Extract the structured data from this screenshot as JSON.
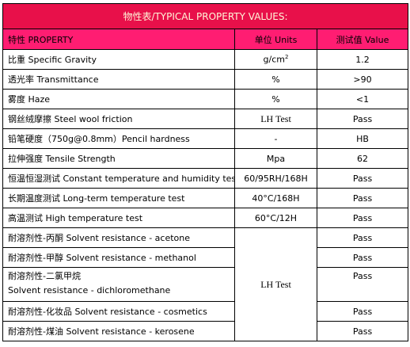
{
  "table": {
    "title": "物性表/TYPICAL PROPERTY VALUES:",
    "header": [
      "特性 PROPERTY",
      "单位 Units",
      "测试值 Value"
    ],
    "rows": [
      {
        "property": "比重  Specific Gravity",
        "unit": "g/cm",
        "unit_sup": "2",
        "value": "1.2"
      },
      {
        "property": "透光率  Transmittance",
        "unit": "%",
        "value": ">90"
      },
      {
        "property": "雾度  Haze",
        "unit": "%",
        "value": "<1"
      },
      {
        "property": "钢丝绒摩擦   Steel wool friction",
        "unit": "LH Test",
        "value": "Pass"
      },
      {
        "property": "铅笔硬度（750g@0.8mm）Pencil hardness",
        "unit": "-",
        "value": "HB"
      },
      {
        "property": "拉伸强度   Tensile Strength",
        "unit": "Mpa",
        "value": "62"
      },
      {
        "property": "恒温恒湿测试  Constant temperature and humidity test",
        "unit": "60/95RH/168H",
        "value": "Pass"
      },
      {
        "property": "长期温度测试  Long-term temperature test",
        "unit": "40°C/168H",
        "value": "Pass"
      },
      {
        "property": "高温测试  High temperature test",
        "unit": "60°C/12H",
        "value": "Pass"
      }
    ],
    "solvent_unit": "LH Test",
    "solvent_rows": [
      {
        "property": [
          "耐溶剂性-丙酮  Solvent resistance - acetone"
        ],
        "value": "Pass"
      },
      {
        "property": [
          "耐溶剂性-甲醇  Solvent resistance - methanol"
        ],
        "value": "Pass"
      },
      {
        "property": [
          "耐溶剂性-二氯甲烷",
          "Solvent resistance - dichloromethane"
        ],
        "value": "Pass"
      },
      {
        "property": [
          "耐溶剂性-化妆品  Solvent resistance - cosmetics"
        ],
        "value": "Pass"
      },
      {
        "property": [
          "耐溶剂性-煤油  Solvent resistance - kerosene"
        ],
        "value": "Pass"
      }
    ]
  }
}
